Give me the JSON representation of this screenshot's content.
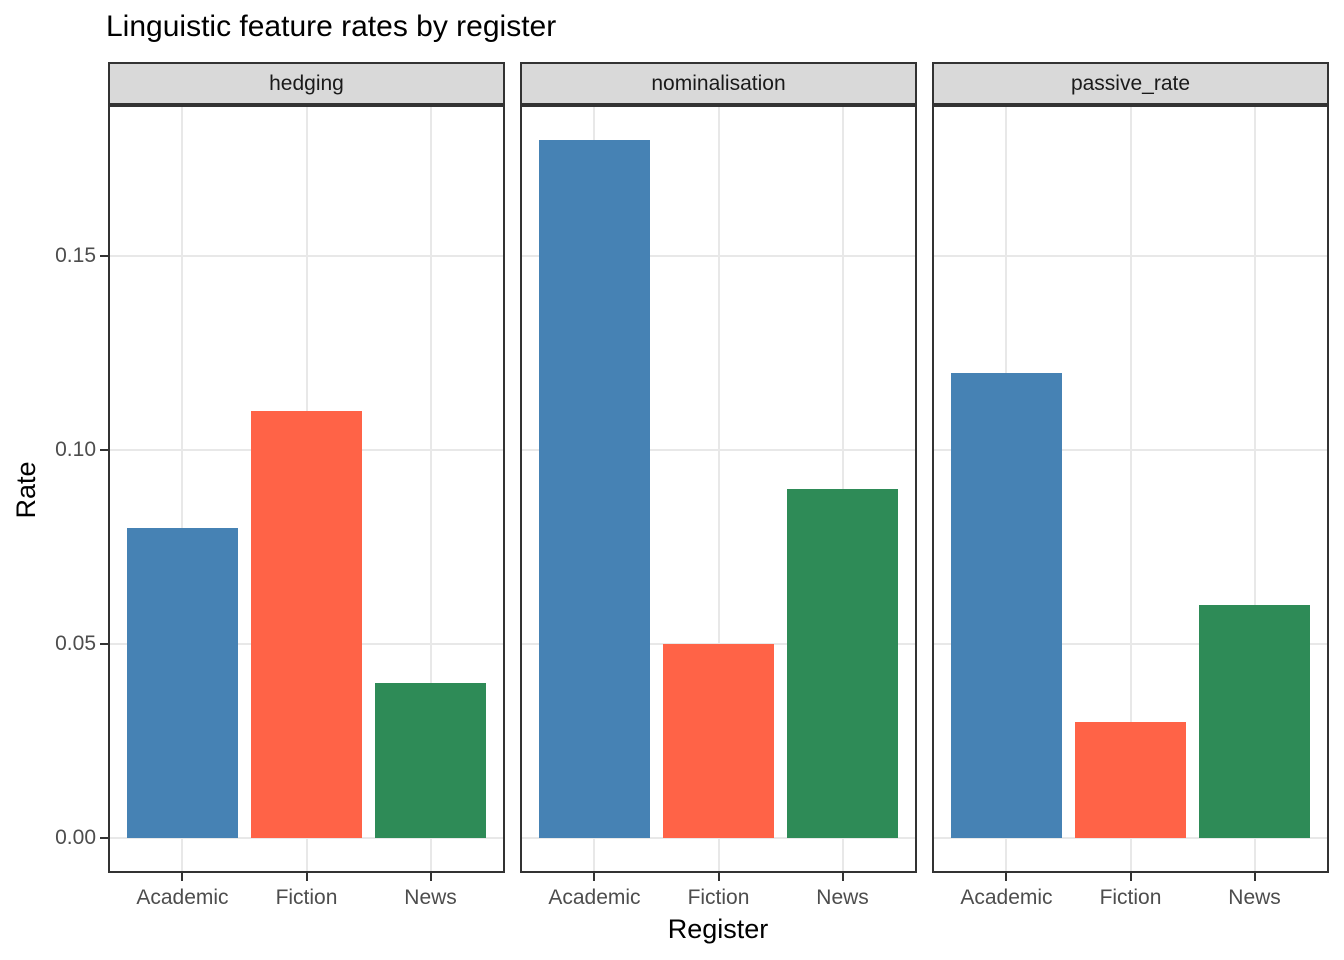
{
  "chart": {
    "title": "Linguistic feature rates by register",
    "x_axis_title": "Register",
    "y_axis_title": "Rate"
  },
  "chart_data": {
    "type": "bar",
    "title": "Linguistic feature rates by register",
    "xlabel": "Register",
    "ylabel": "Rate",
    "facets": [
      {
        "label": "hedging",
        "values": [
          0.08,
          0.11,
          0.04
        ]
      },
      {
        "label": "nominalisation",
        "values": [
          0.18,
          0.05,
          0.09
        ]
      },
      {
        "label": "passive_rate",
        "values": [
          0.12,
          0.03,
          0.06
        ]
      }
    ],
    "categories": [
      "Academic",
      "Fiction",
      "News"
    ],
    "bar_colors": [
      "#4682B4",
      "#FF6347",
      "#2E8B57"
    ],
    "y_ticks": [
      {
        "value": 0.0,
        "label": "0.00"
      },
      {
        "value": 0.05,
        "label": "0.05"
      },
      {
        "value": 0.1,
        "label": "0.10"
      },
      {
        "value": 0.15,
        "label": "0.15"
      }
    ],
    "ylim": [
      -0.009,
      0.189
    ],
    "grid": true,
    "legend": "none",
    "style": {
      "strip_fill": "#D9D9D9",
      "panel_border_color": "#333333",
      "grid_color": "#E8E8E8",
      "axis_text_color": "#4D4D4D",
      "tick_color": "#333333",
      "title_color": "#000000"
    }
  }
}
